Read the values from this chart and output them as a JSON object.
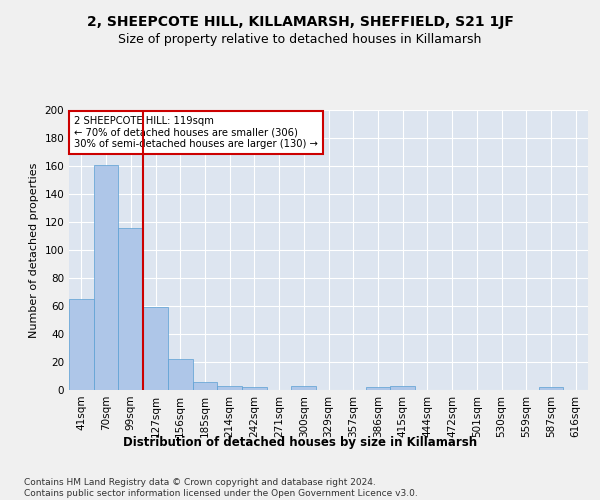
{
  "title": "2, SHEEPCOTE HILL, KILLAMARSH, SHEFFIELD, S21 1JF",
  "subtitle": "Size of property relative to detached houses in Killamarsh",
  "xlabel": "Distribution of detached houses by size in Killamarsh",
  "ylabel": "Number of detached properties",
  "categories": [
    "41sqm",
    "70sqm",
    "99sqm",
    "127sqm",
    "156sqm",
    "185sqm",
    "214sqm",
    "242sqm",
    "271sqm",
    "300sqm",
    "329sqm",
    "357sqm",
    "386sqm",
    "415sqm",
    "444sqm",
    "472sqm",
    "501sqm",
    "530sqm",
    "559sqm",
    "587sqm",
    "616sqm"
  ],
  "values": [
    65,
    161,
    116,
    59,
    22,
    6,
    3,
    2,
    0,
    3,
    0,
    0,
    2,
    3,
    0,
    0,
    0,
    0,
    0,
    2,
    0
  ],
  "bar_color": "#aec6e8",
  "bar_edge_color": "#5a9fd4",
  "background_color": "#dde5f0",
  "grid_color": "#ffffff",
  "vline_color": "#cc0000",
  "annotation_text": "2 SHEEPCOTE HILL: 119sqm\n← 70% of detached houses are smaller (306)\n30% of semi-detached houses are larger (130) →",
  "annotation_box_color": "#ffffff",
  "annotation_box_edge_color": "#cc0000",
  "footer": "Contains HM Land Registry data © Crown copyright and database right 2024.\nContains public sector information licensed under the Open Government Licence v3.0.",
  "ylim": [
    0,
    200
  ],
  "yticks": [
    0,
    20,
    40,
    60,
    80,
    100,
    120,
    140,
    160,
    180,
    200
  ],
  "title_fontsize": 10,
  "subtitle_fontsize": 9,
  "xlabel_fontsize": 8.5,
  "ylabel_fontsize": 8,
  "tick_fontsize": 7.5,
  "footer_fontsize": 6.5,
  "fig_bg_color": "#f0f0f0"
}
